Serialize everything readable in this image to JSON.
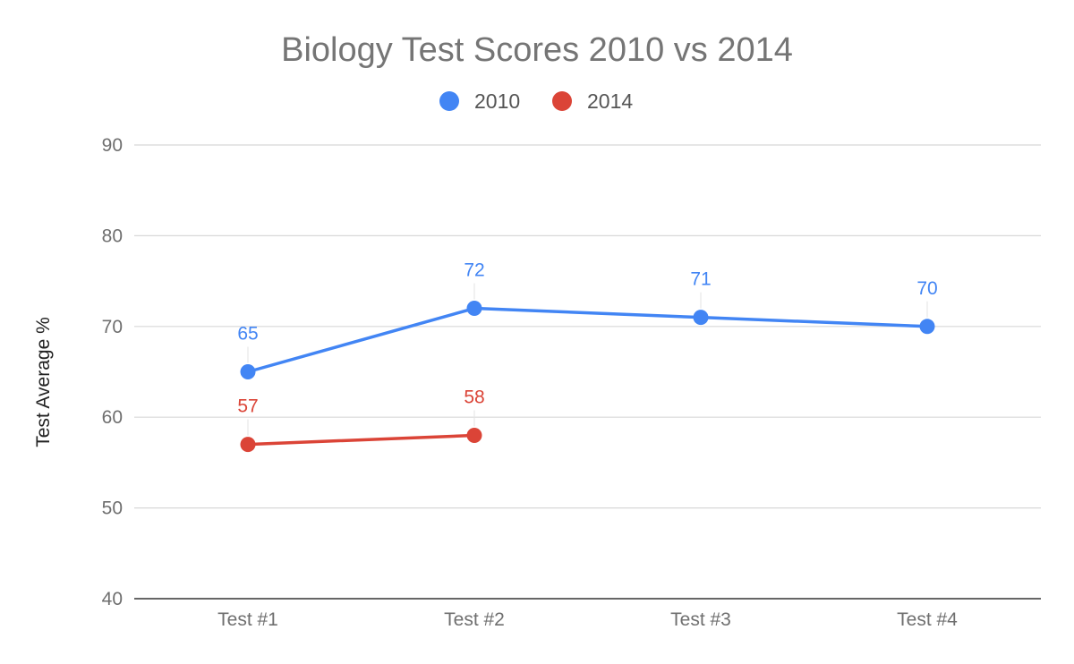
{
  "chart_data": {
    "type": "line",
    "title": "Biology Test Scores 2010 vs 2014",
    "xlabel": "",
    "ylabel": "Test Average %",
    "categories": [
      "Test #1",
      "Test #2",
      "Test #3",
      "Test #4"
    ],
    "series": [
      {
        "name": "2010",
        "color": "#4285f4",
        "values": [
          65,
          72,
          71,
          70
        ],
        "labels": [
          "65",
          "72",
          "71",
          "70"
        ]
      },
      {
        "name": "2014",
        "color": "#db4437",
        "values": [
          57,
          58,
          null,
          null
        ],
        "labels": [
          "57",
          "58",
          "",
          ""
        ]
      }
    ],
    "ylim": [
      40,
      90
    ],
    "yticks": [
      "40",
      "50",
      "60",
      "70",
      "80",
      "90"
    ],
    "grid": true,
    "legend_position": "top",
    "colors": {
      "gridline": "#d8d8d8",
      "baseline": "#333333",
      "tick_text": "#6f6f6f",
      "title_text": "#757575"
    }
  }
}
